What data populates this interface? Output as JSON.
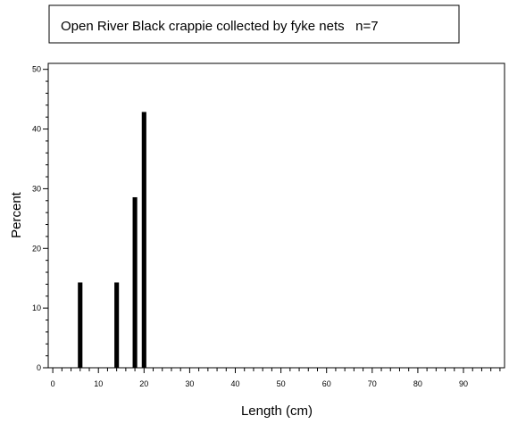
{
  "chart_data": {
    "type": "bar",
    "title": "Open River Black crappie collected by fyke nets   n=7",
    "xlabel": "Length (cm)",
    "ylabel": "Percent",
    "xlim": [
      -1,
      99
    ],
    "ylim": [
      0,
      51
    ],
    "x_ticks": [
      0,
      10,
      20,
      30,
      40,
      50,
      60,
      70,
      80,
      90
    ],
    "y_ticks": [
      0,
      10,
      20,
      30,
      40,
      50
    ],
    "x_minor_step": 2,
    "y_minor_step": 2,
    "bar_width": 1,
    "series": [
      {
        "x": [
          6,
          14,
          18,
          20
        ],
        "values": [
          14.29,
          14.29,
          28.57,
          42.86
        ]
      }
    ],
    "grid": false,
    "legend": "none",
    "bar_color": "#000000"
  }
}
